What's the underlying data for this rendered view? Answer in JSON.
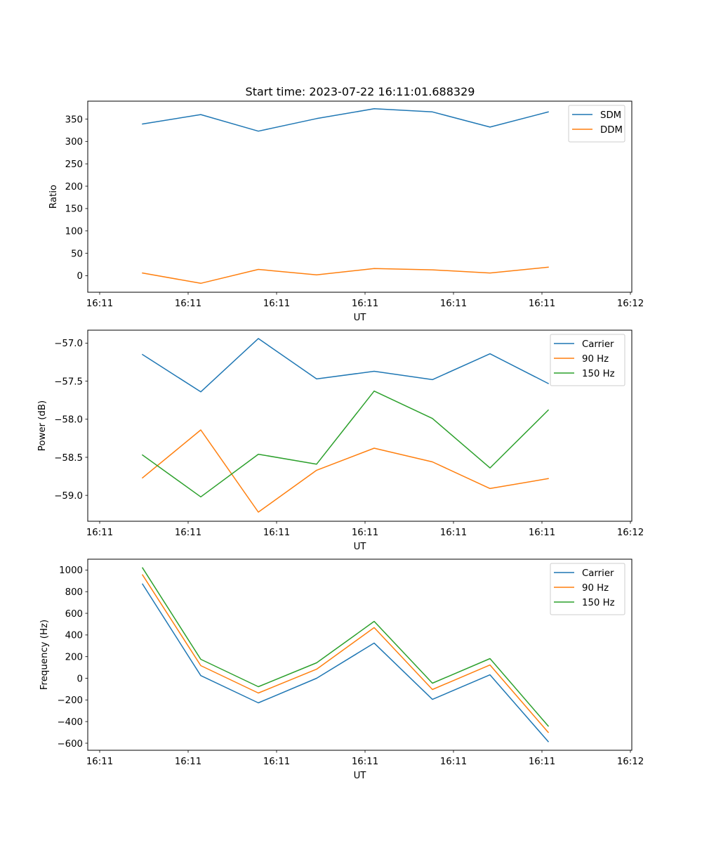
{
  "chart_data": [
    {
      "type": "line",
      "title": "Start time: 2023-07-22 16:11:01.688329",
      "xlabel": "UT",
      "ylabel": "Ratio",
      "x_tick_labels": [
        "16:11",
        "16:11",
        "16:11",
        "16:11",
        "16:11",
        "16:11",
        "16:12"
      ],
      "x_points": 8,
      "y_ticks": [
        0,
        50,
        100,
        150,
        200,
        250,
        300,
        350
      ],
      "y_tick_labels": [
        "0",
        "50",
        "100",
        "150",
        "200",
        "250",
        "300",
        "350"
      ],
      "ylim": [
        -37,
        390
      ],
      "grid": false,
      "legend_position": "top-right",
      "series": [
        {
          "name": "SDM",
          "color": "#1f77b4",
          "values": [
            339,
            360,
            323,
            351,
            373,
            366,
            332,
            366
          ]
        },
        {
          "name": "DDM",
          "color": "#ff7f0e",
          "values": [
            6,
            -17,
            14,
            2,
            16,
            13,
            6,
            19
          ]
        }
      ]
    },
    {
      "type": "line",
      "title": "",
      "xlabel": "UT",
      "ylabel": "Power (dB)",
      "x_tick_labels": [
        "16:11",
        "16:11",
        "16:11",
        "16:11",
        "16:11",
        "16:11",
        "16:12"
      ],
      "x_points": 8,
      "y_ticks": [
        -57.0,
        -57.5,
        -58.0,
        -58.5,
        -59.0
      ],
      "y_tick_labels": [
        "−57.0",
        "−57.5",
        "−58.0",
        "−58.5",
        "−59.0"
      ],
      "ylim": [
        -59.34,
        -56.83
      ],
      "grid": false,
      "legend_position": "top-right",
      "series": [
        {
          "name": "Carrier",
          "color": "#1f77b4",
          "values": [
            -57.15,
            -57.64,
            -56.94,
            -57.47,
            -57.37,
            -57.48,
            -57.14,
            -57.53
          ]
        },
        {
          "name": "90 Hz",
          "color": "#ff7f0e",
          "values": [
            -58.77,
            -58.14,
            -59.22,
            -58.67,
            -58.38,
            -58.56,
            -58.91,
            -58.78
          ]
        },
        {
          "name": "150 Hz",
          "color": "#2ca02c",
          "values": [
            -58.47,
            -59.02,
            -58.46,
            -58.59,
            -57.63,
            -57.99,
            -58.64,
            -57.88
          ]
        }
      ]
    },
    {
      "type": "line",
      "title": "",
      "xlabel": "UT",
      "ylabel": "Frequency (Hz)",
      "x_tick_labels": [
        "16:11",
        "16:11",
        "16:11",
        "16:11",
        "16:11",
        "16:11",
        "16:12"
      ],
      "x_points": 8,
      "y_ticks": [
        1000,
        800,
        600,
        400,
        200,
        0,
        -200,
        -400,
        -600
      ],
      "y_tick_labels": [
        "1000",
        "800",
        "600",
        "400",
        "200",
        "0",
        "−200",
        "−400",
        "−600"
      ],
      "ylim": [
        -665,
        1100
      ],
      "grid": false,
      "legend_position": "top-right",
      "series": [
        {
          "name": "Carrier",
          "color": "#1f77b4",
          "values": [
            870,
            25,
            -227,
            0,
            325,
            -195,
            32,
            -585
          ]
        },
        {
          "name": "90 Hz",
          "color": "#ff7f0e",
          "values": [
            955,
            117,
            -136,
            84,
            468,
            -104,
            123,
            -500
          ]
        },
        {
          "name": "150 Hz",
          "color": "#2ca02c",
          "values": [
            1020,
            175,
            -78,
            143,
            526,
            -45,
            182,
            -442
          ]
        }
      ]
    }
  ]
}
